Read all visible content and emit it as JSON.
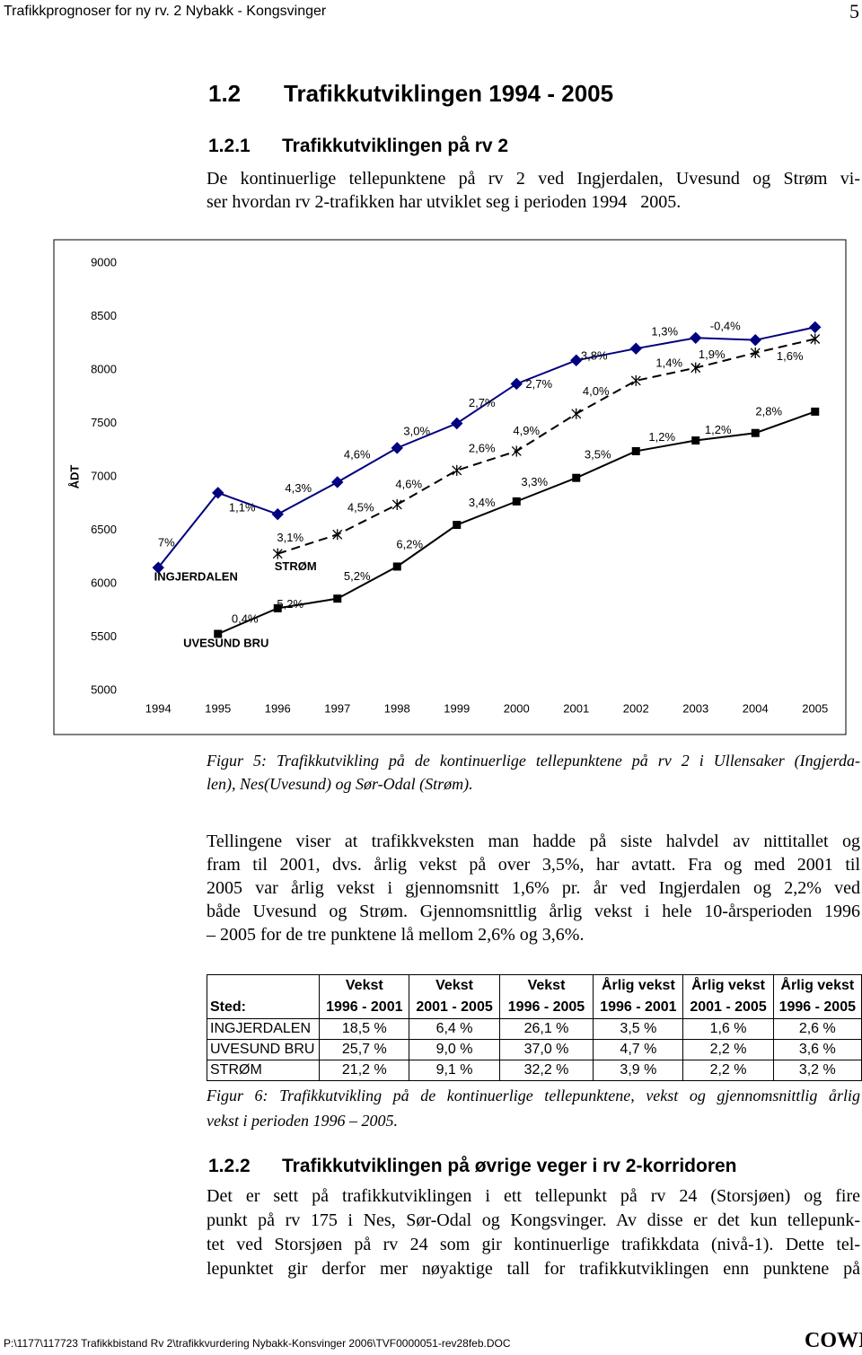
{
  "header": {
    "title": "Trafikkprognoser for ny rv. 2 Nybakk - Kongsvinger",
    "page": "5"
  },
  "section": {
    "number": "1.2",
    "title": "Trafikkutviklingen 1994 - 2005"
  },
  "subsection_1": {
    "number": "1.2.1",
    "title": "Trafikkutviklingen på rv 2"
  },
  "paragraph_1": [
    "De kontinuerlige tellepunktene på rv 2 ved Ingjerdalen, Uvesund og Strøm vi-",
    "ser hvordan rv 2-trafikken har utviklet seg i perioden 1994   2005."
  ],
  "chart_data": {
    "type": "line",
    "ylabel": "ÅDT",
    "categories": [
      "1994",
      "1995",
      "1996",
      "1997",
      "1998",
      "1999",
      "2000",
      "2001",
      "2002",
      "2003",
      "2004",
      "2005"
    ],
    "ylim": [
      5000,
      9000
    ],
    "yticks": [
      5000,
      5500,
      6000,
      6500,
      7000,
      7500,
      8000,
      8500,
      9000
    ],
    "grid": false,
    "series": [
      {
        "name": "INGJERDALEN",
        "color": "#000080",
        "marker": "diamond",
        "line_style": "solid",
        "values": [
          6150,
          6850,
          6650,
          6950,
          7270,
          7500,
          7870,
          8090,
          8200,
          8300,
          8280,
          8400
        ],
        "point_labels": [
          "7%",
          "1,1%",
          "4,3%",
          "4,6%",
          "3,0%",
          "2,7%",
          "2,7%",
          "3,8%",
          "1,3%",
          "-0,4%",
          null,
          "1,6%"
        ]
      },
      {
        "name": "UVESUND BRU",
        "color": "#000000",
        "marker": "square",
        "line_style": "solid",
        "values": [
          null,
          5530,
          5770,
          5860,
          6160,
          6550,
          6770,
          6990,
          7240,
          7340,
          7410,
          7610
        ],
        "point_labels": [
          null,
          "0,4%",
          "5,2%",
          "5,2%",
          "6,2%",
          "3,4%",
          "3,3%",
          "3,5%",
          "1,2%",
          "1,2%",
          "2,8%",
          null
        ]
      },
      {
        "name": "STRØM",
        "color": "#000000",
        "marker": "asterisk",
        "line_style": "dashed",
        "values": [
          null,
          null,
          6280,
          6460,
          6740,
          7060,
          7240,
          7590,
          7900,
          8020,
          8160,
          8290
        ],
        "point_labels": [
          null,
          null,
          "3,1%",
          "4,5%",
          "4,6%",
          "2,6%",
          "4,9%",
          "4,0%",
          "1,4%",
          "1,9%",
          null,
          null
        ]
      }
    ]
  },
  "caption_1": [
    "Figur 5: Trafikkutvikling på de kontinuerlige tellepunktene på rv 2 i Ullensaker (Ingjerda-",
    "len), Nes(Uvesund) og Sør-Odal (Strøm)."
  ],
  "paragraph_2": [
    "Tellingene viser at trafikkveksten man hadde på siste halvdel av nittitallet og",
    "fram til 2001, dvs. årlig vekst på over 3,5%, har avtatt. Fra og med 2001 til",
    "2005 var årlig vekst i gjennomsnitt 1,6% pr. år ved Ingjerdalen og 2,2% ved",
    "både Uvesund og Strøm. Gjennomsnittlig årlig vekst i hele 10-årsperioden 1996",
    "– 2005 for de tre punktene lå mellom 2,6% og 3,6%."
  ],
  "table": {
    "first_column": "Sted:",
    "columns": [
      [
        "Vekst",
        "1996 - 2001"
      ],
      [
        "Vekst",
        "2001 - 2005"
      ],
      [
        "Vekst",
        "1996 - 2005"
      ],
      [
        "Årlig vekst",
        "1996 - 2001"
      ],
      [
        "Årlig vekst",
        "2001 - 2005"
      ],
      [
        "Årlig vekst",
        "1996 - 2005"
      ]
    ],
    "rows": [
      [
        "INGJERDALEN",
        "18,5 %",
        "6,4 %",
        "26,1 %",
        "3,5 %",
        "1,6 %",
        "2,6 %"
      ],
      [
        "UVESUND BRU",
        "25,7 %",
        "9,0 %",
        "37,0 %",
        "4,7 %",
        "2,2 %",
        "3,6 %"
      ],
      [
        "STRØM",
        "21,2 %",
        "9,1 %",
        "32,2 %",
        "3,9 %",
        "2,2 %",
        "3,2 %"
      ]
    ]
  },
  "caption_2": [
    "Figur 6: Trafikkutvikling på de kontinuerlige tellepunktene, vekst og gjennomsnittlig årlig",
    "vekst i perioden 1996 – 2005."
  ],
  "subsection_2": {
    "number": "1.2.2",
    "title": "Trafikkutviklingen på øvrige veger i rv 2-korridoren"
  },
  "paragraph_3": [
    "Det er sett på trafikkutviklingen i ett tellepunkt på rv 24 (Storsjøen) og fire",
    "punkt på rv 175 i Nes, Sør-Odal og Kongsvinger. Av disse er det kun tellepunk-",
    "tet ved Storsjøen på rv 24 som gir kontinuerlige trafikkdata (nivå-1). Dette tel-",
    "lepunktet gir derfor mer nøyaktige tall for trafikkutviklingen enn punktene på"
  ],
  "footer": {
    "path": "P:\\1177\\117723 Trafikkbistand Rv 2\\trafikkvurdering Nybakk-Konsvinger 2006\\TVF0000051-rev28feb.DOC",
    "logo": "COWI"
  }
}
